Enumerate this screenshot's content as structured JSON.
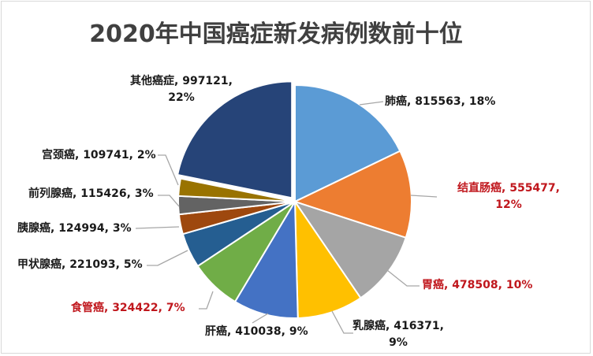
{
  "chart_data": {
    "type": "pie",
    "title": "2020年中国癌症新发病例数前十位",
    "start_angle": "12 o'clock",
    "direction": "clockwise",
    "slices": [
      {
        "name": "肺癌",
        "value": 815563,
        "percent": "18%",
        "color": "#5B9BD5",
        "label_color": "#1a1a1a"
      },
      {
        "name": "结直肠癌",
        "value": 555477,
        "percent": "12%",
        "color": "#ED7D31",
        "label_color": "#c0171d"
      },
      {
        "name": "胃癌",
        "value": 478508,
        "percent": "10%",
        "color": "#A5A5A5",
        "label_color": "#c0171d"
      },
      {
        "name": "乳腺癌",
        "value": 416371,
        "percent": "9%",
        "color": "#FFC000",
        "label_color": "#1a1a1a"
      },
      {
        "name": "肝癌",
        "value": 410038,
        "percent": "9%",
        "color": "#4472C4",
        "label_color": "#1a1a1a"
      },
      {
        "name": "食管癌",
        "value": 324422,
        "percent": "7%",
        "color": "#70AD47",
        "label_color": "#c0171d"
      },
      {
        "name": "甲状腺癌",
        "value": 221093,
        "percent": "5%",
        "color": "#255E91",
        "label_color": "#1a1a1a"
      },
      {
        "name": "胰腺癌",
        "value": 124994,
        "percent": "3%",
        "color": "#9E480E",
        "label_color": "#1a1a1a"
      },
      {
        "name": "前列腺癌",
        "value": 115426,
        "percent": "3%",
        "color": "#636363",
        "label_color": "#1a1a1a"
      },
      {
        "name": "宫颈癌",
        "value": 109741,
        "percent": "2%",
        "color": "#997300",
        "label_color": "#1a1a1a"
      },
      {
        "name": "其他癌症",
        "value": 997121,
        "percent": "22%",
        "color": "#264478",
        "label_color": "#1a1a1a",
        "exploded": true
      }
    ],
    "labels": [
      "肺癌, 815563, 18%",
      "结直肠癌, 555477,",
      "12%",
      "胃癌, 478508, 10%",
      "乳腺癌, 416371,",
      "9%",
      "肝癌, 410038, 9%",
      "食管癌, 324422, 7%",
      "甲状腺癌, 221093, 5%",
      "胰腺癌, 124994, 3%",
      "前列腺癌, 115426, 3%",
      "宫颈癌, 109741, 2%",
      "其他癌症, 997121,",
      "22%"
    ]
  }
}
